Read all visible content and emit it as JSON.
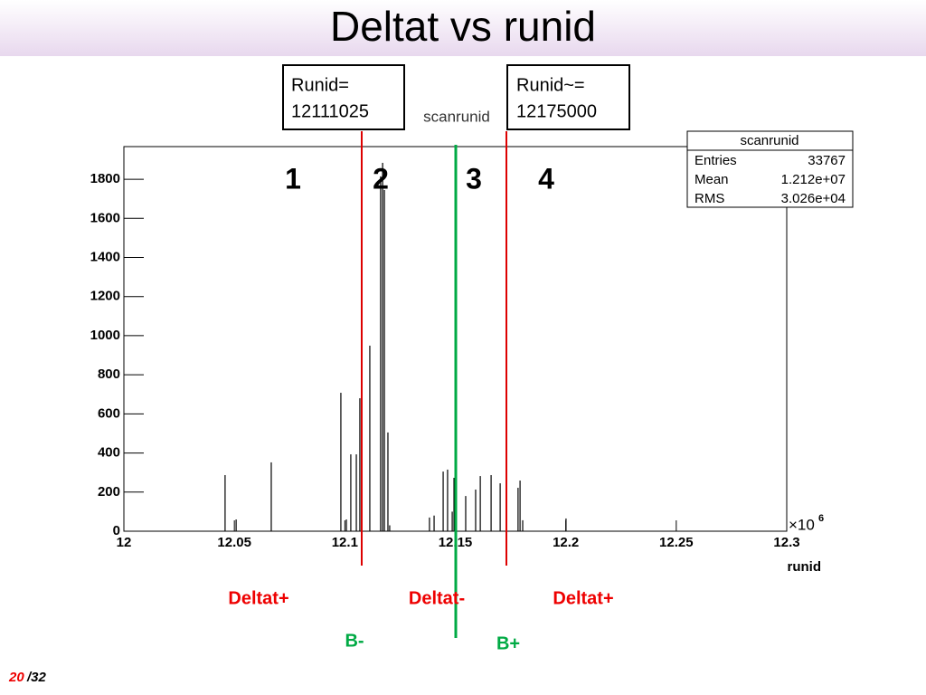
{
  "slide": {
    "title": "Deltat vs runid",
    "page": "20",
    "total": "/32"
  },
  "chart_data": {
    "type": "bar",
    "title": "scanrunid",
    "x_label": "runid",
    "x_scale_label": "×10",
    "x_scale_exponent": "6",
    "x": [
      12.0458,
      12.0508,
      12.0667,
      12.0982,
      12.1007,
      12.1027,
      12.1052,
      12.1068,
      12.1113,
      12.1162,
      12.1171,
      12.1179,
      12.1195,
      12.1203,
      12.1383,
      12.1404,
      12.1445,
      12.1465,
      12.1486,
      12.1494,
      12.1547,
      12.1592,
      12.1613,
      12.1662,
      12.1703,
      12.1784,
      12.1793,
      12.1805,
      12.2001
    ],
    "values": [
      287,
      60,
      352,
      708,
      60,
      393,
      393,
      680,
      949,
      1815,
      1884,
      1745,
      505,
      30,
      70,
      80,
      305,
      315,
      100,
      273,
      180,
      213,
      282,
      287,
      245,
      222,
      259,
      56,
      65
    ],
    "color": "#000000",
    "xlim": [
      12,
      12.3
    ],
    "ylim": [
      0,
      1967
    ],
    "xticks": [
      12,
      12.05,
      12.1,
      12.15,
      12.2,
      12.25,
      12.3
    ],
    "yticks": [
      0,
      200,
      400,
      600,
      800,
      1000,
      1200,
      1400,
      1600,
      1800
    ],
    "stats": {
      "title": "scanrunid",
      "rows": [
        [
          "Entries",
          "33767"
        ],
        [
          "Mean",
          "1.212e+07"
        ],
        [
          "RMS",
          "3.026e+04"
        ]
      ]
    }
  },
  "annotations": {
    "cut_low": [
      "Runid=",
      "12111025"
    ],
    "cut_high": [
      "Runid~=",
      "12175000"
    ],
    "regions": [
      "1",
      "2",
      "3",
      "4"
    ],
    "deltat": [
      "Deltat+",
      "Deltat-",
      "Deltat+"
    ],
    "b": [
      "B-",
      "B+"
    ]
  }
}
